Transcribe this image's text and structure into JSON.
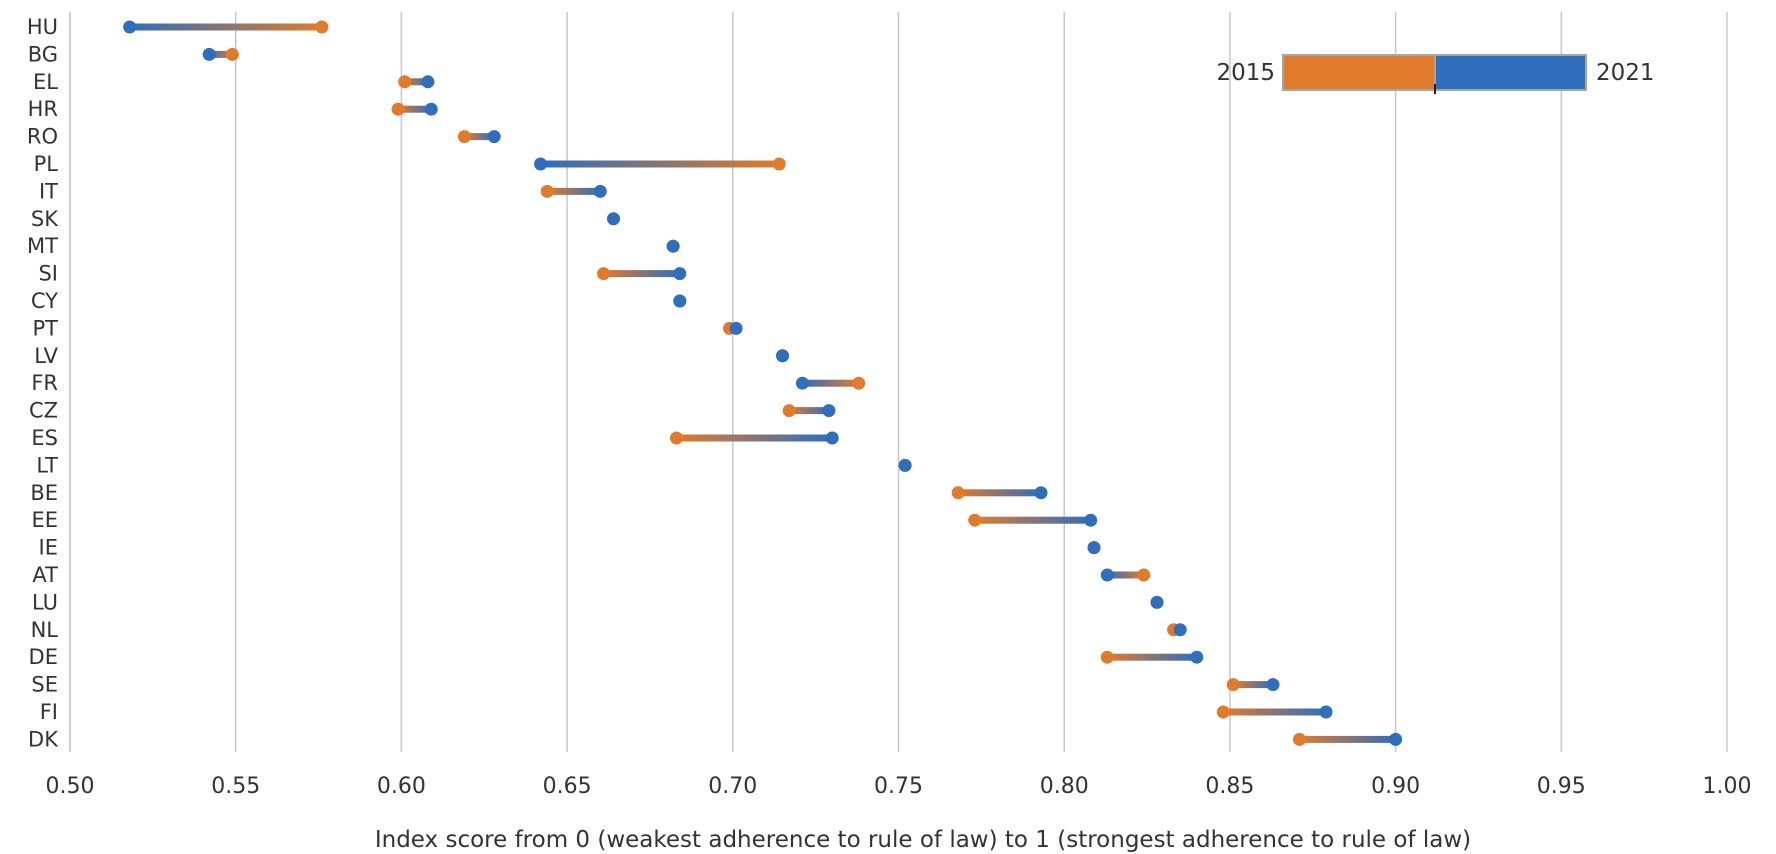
{
  "chart_data": {
    "type": "dumbbell",
    "xlabel": "Index score from 0 (weakest adherence to rule of law) to 1 (strongest adherence to rule of law)",
    "ylabel": "",
    "xlim": [
      0.5,
      1.0
    ],
    "xticks": [
      "0.50",
      "0.55",
      "0.60",
      "0.65",
      "0.70",
      "0.75",
      "0.80",
      "0.85",
      "0.90",
      "0.95",
      "1.00"
    ],
    "grid": "vertical",
    "legend_position": "top-right",
    "series": [
      {
        "name": "2015",
        "color": "#E07B2C"
      },
      {
        "name": "2021",
        "color": "#2E6EBD"
      }
    ],
    "categories": [
      "HU",
      "BG",
      "EL",
      "HR",
      "RO",
      "PL",
      "IT",
      "SK",
      "MT",
      "SI",
      "CY",
      "PT",
      "LV",
      "FR",
      "CZ",
      "ES",
      "LT",
      "BE",
      "EE",
      "IE",
      "AT",
      "LU",
      "NL",
      "DE",
      "SE",
      "FI",
      "DK"
    ],
    "values_2015": [
      0.576,
      0.549,
      0.601,
      0.599,
      0.619,
      0.714,
      0.644,
      0.664,
      0.682,
      0.661,
      0.684,
      0.699,
      0.715,
      0.738,
      0.717,
      0.683,
      0.752,
      0.768,
      0.773,
      0.809,
      0.824,
      0.828,
      0.833,
      0.813,
      0.851,
      0.848,
      0.871
    ],
    "values_2021": [
      0.518,
      0.542,
      0.608,
      0.609,
      0.628,
      0.642,
      0.66,
      0.664,
      0.682,
      0.684,
      0.684,
      0.701,
      0.715,
      0.721,
      0.729,
      0.73,
      0.752,
      0.793,
      0.808,
      0.809,
      0.813,
      0.828,
      0.835,
      0.84,
      0.863,
      0.879,
      0.9
    ]
  }
}
